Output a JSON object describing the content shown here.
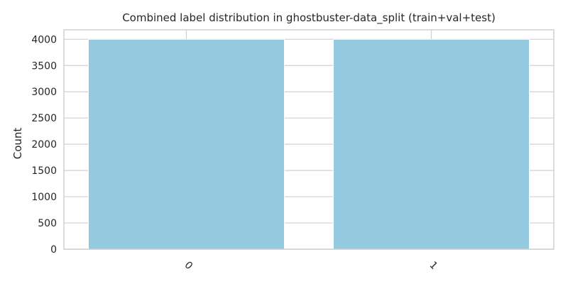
{
  "chart_data": {
    "type": "bar",
    "title": "Combined label distribution in ghostbuster-data_split (train+val+test)",
    "xlabel": "",
    "ylabel": "Count",
    "categories": [
      "0",
      "1"
    ],
    "values": [
      4000,
      4000
    ],
    "ylim": [
      0,
      4000
    ],
    "yticks": [
      0,
      500,
      1000,
      1500,
      2000,
      2500,
      3000,
      3500,
      4000
    ],
    "grid": true,
    "bar_color": "#95c9df",
    "grid_color": "#d0d0d0",
    "xtick_rotation": -45
  }
}
